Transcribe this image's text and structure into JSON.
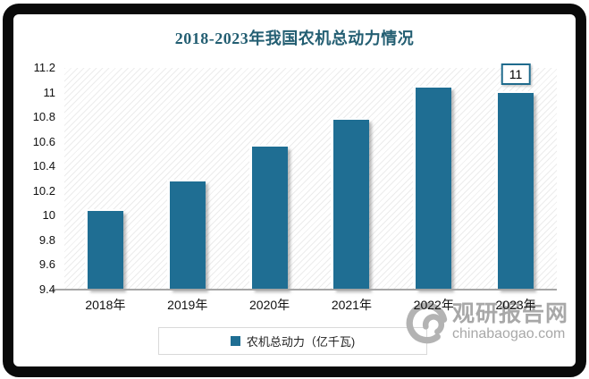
{
  "title": "2018-2023年我国农机总动力情况",
  "chart_data": {
    "type": "bar",
    "title": "2018-2023年我国农机总动力情况",
    "categories": [
      "2018年",
      "2019年",
      "2020年",
      "2021年",
      "2022年",
      "2023年"
    ],
    "series": [
      {
        "name": "农机总动力（亿千瓦)",
        "values": [
          10.04,
          10.28,
          10.56,
          10.78,
          11.04,
          11.0
        ]
      }
    ],
    "ylim": [
      9.4,
      11.2
    ],
    "y_tick_step": 0.2,
    "y_tick_labels_top_to_bottom": [
      "11.2",
      "11",
      "10.8",
      "10.6",
      "10.4",
      "10.2",
      "10",
      "9.8",
      "9.6",
      "9.4"
    ],
    "grid": false,
    "plot_background": "diagonal-hatch",
    "legend_position": "bottom-center",
    "annotation": {
      "text": "11",
      "category": "2023年"
    }
  },
  "legend": {
    "label": "农机总动力（亿千瓦)"
  },
  "watermark": {
    "cn": "观研报告网",
    "en": "chinabaogao.com"
  },
  "colors": {
    "bar": "#1f6e93",
    "title": "#235e72",
    "axis": "#a6a6a6",
    "annotation_border": "#1f6b8d",
    "legend_border": "#d9d9d9",
    "watermark": "#a8a8a8",
    "frame": "#0a0a0a"
  }
}
